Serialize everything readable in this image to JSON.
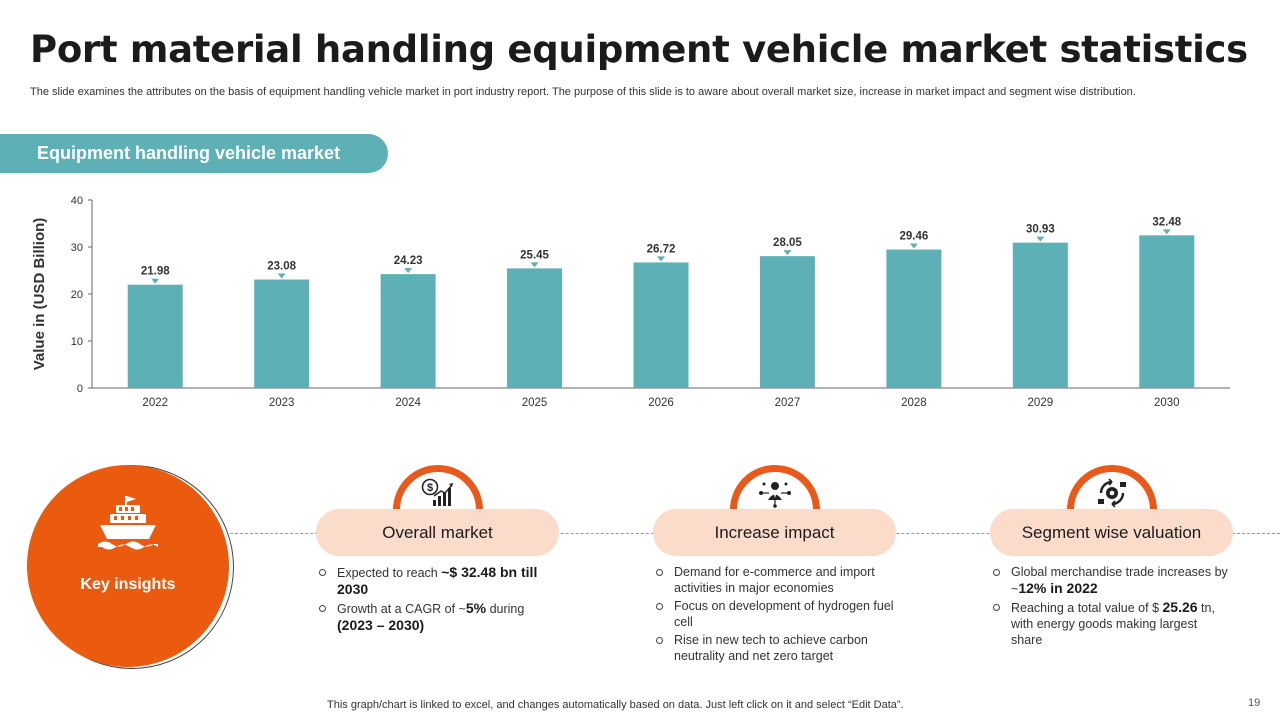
{
  "header": {
    "title": "Port material handling equipment vehicle market statistics",
    "subtitle": "The slide examines the attributes on the basis of equipment handling vehicle market in port industry report. The purpose of this slide is to aware about overall market size, increase in market impact and segment wise distribution."
  },
  "section_label": "Equipment handling vehicle market",
  "chart_data": {
    "type": "bar",
    "title": "Equipment handling vehicle market",
    "categories": [
      "2022",
      "2023",
      "2024",
      "2025",
      "2026",
      "2027",
      "2028",
      "2029",
      "2030"
    ],
    "values": [
      21.98,
      23.08,
      24.23,
      25.45,
      26.72,
      28.05,
      29.46,
      30.93,
      32.48
    ],
    "value_labels": [
      "21.98",
      "23.08",
      "24.23",
      "25.45",
      "26.72",
      "28.05",
      "29.46",
      "30.93",
      "32.48"
    ],
    "xlabel": "",
    "ylabel": "Value in (USD Billion)",
    "ylim": [
      0,
      40
    ],
    "yticks": [
      "0",
      "10",
      "20",
      "30",
      "40"
    ],
    "grid": false,
    "bar_color": "#5db0b5"
  },
  "insights": {
    "title": "Key insights",
    "icon": "ship-icon",
    "accent_color": "#ea5a0f",
    "pill_color": "#fbdccb"
  },
  "cards": [
    {
      "title": "Overall market",
      "icon": "dollar-chart-icon",
      "bullets": [
        [
          {
            "t": "Expected to reach "
          },
          {
            "t": "~$ 32.48 bn till 2030",
            "b": true
          }
        ],
        [
          {
            "t": "Growth at a CAGR of ~"
          },
          {
            "t": "5%",
            "b": true
          },
          {
            "t": " during "
          },
          {
            "t": "(2023 – 2030)",
            "b": true
          }
        ]
      ]
    },
    {
      "title": "Increase impact",
      "icon": "network-person-icon",
      "bullets": [
        [
          {
            "t": "Demand for e-commerce and import activities in major economies"
          }
        ],
        [
          {
            "t": "Focus on development of hydrogen fuel cell"
          }
        ],
        [
          {
            "t": "Rise in new tech to achieve carbon neutrality and net zero target"
          }
        ]
      ]
    },
    {
      "title": "Segment wise valuation",
      "icon": "segment-cycle-icon",
      "bullets": [
        [
          {
            "t": "Global merchandise trade increases by ~"
          },
          {
            "t": "12% in 2022",
            "b": true
          }
        ],
        [
          {
            "t": "Reaching a total value of $ "
          },
          {
            "t": "25.26",
            "b": true
          },
          {
            "t": " tn, with energy goods making largest share"
          }
        ]
      ]
    }
  ],
  "footer": {
    "note": "This graph/chart is linked to excel, and changes automatically based on data. Just left click on it and select “Edit Data”.",
    "page_number": "19"
  }
}
